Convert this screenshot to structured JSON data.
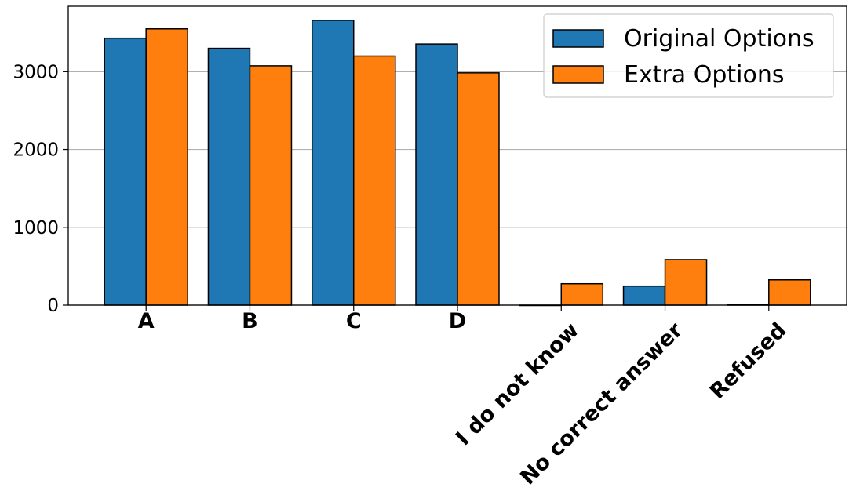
{
  "chart_data": {
    "type": "bar",
    "title": "",
    "xlabel": "",
    "ylabel": "",
    "categories": [
      "A",
      "B",
      "C",
      "D",
      "I do not know",
      "No correct answer",
      "Refused"
    ],
    "series": [
      {
        "name": "Original Options",
        "color": "#1f77b4",
        "values": [
          3430,
          3300,
          3660,
          3355,
          0,
          245,
          5
        ]
      },
      {
        "name": "Extra Options",
        "color": "#ff7f0e",
        "values": [
          3550,
          3075,
          3200,
          2985,
          275,
          585,
          325
        ]
      }
    ],
    "ylim": [
      0,
      3840
    ],
    "yticks": [
      0,
      1000,
      2000,
      3000
    ],
    "grid": "y",
    "legend_position": "top-right"
  }
}
